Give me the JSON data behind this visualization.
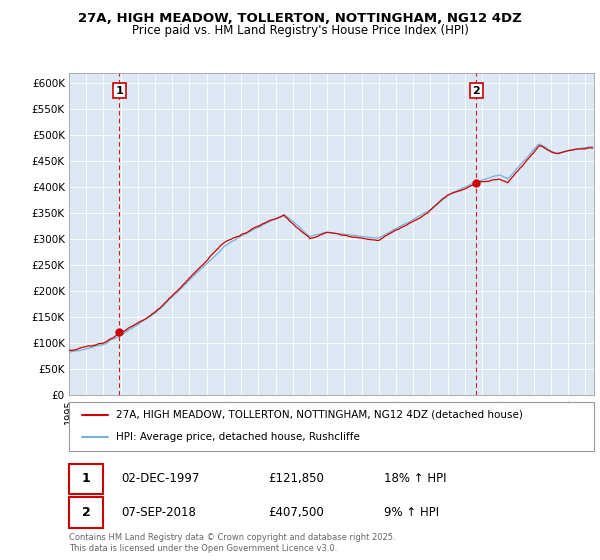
{
  "title": "27A, HIGH MEADOW, TOLLERTON, NOTTINGHAM, NG12 4DZ",
  "subtitle": "Price paid vs. HM Land Registry's House Price Index (HPI)",
  "legend_line1": "27A, HIGH MEADOW, TOLLERTON, NOTTINGHAM, NG12 4DZ (detached house)",
  "legend_line2": "HPI: Average price, detached house, Rushcliffe",
  "annotation1_date": "02-DEC-1997",
  "annotation1_price": 121850,
  "annotation1_price_str": "£121,850",
  "annotation1_hpi": "18% ↑ HPI",
  "annotation2_date": "07-SEP-2018",
  "annotation2_price": 407500,
  "annotation2_price_str": "£407,500",
  "annotation2_hpi": "9% ↑ HPI",
  "footer": "Contains HM Land Registry data © Crown copyright and database right 2025.\nThis data is licensed under the Open Government Licence v3.0.",
  "red_color": "#cc0000",
  "blue_color": "#7aaed6",
  "chart_bg": "#dce9f5",
  "dashed_line_color": "#cc0000",
  "ylim": [
    0,
    620000
  ],
  "yticks": [
    0,
    50000,
    100000,
    150000,
    200000,
    250000,
    300000,
    350000,
    400000,
    450000,
    500000,
    550000,
    600000
  ],
  "ytick_labels": [
    "£0",
    "£50K",
    "£100K",
    "£150K",
    "£200K",
    "£250K",
    "£300K",
    "£350K",
    "£400K",
    "£450K",
    "£500K",
    "£550K",
    "£600K"
  ],
  "sale1_x": 1997.92,
  "sale1_y": 121850,
  "sale2_x": 2018.67,
  "sale2_y": 407500,
  "xmin": 1995,
  "xmax": 2025.5
}
